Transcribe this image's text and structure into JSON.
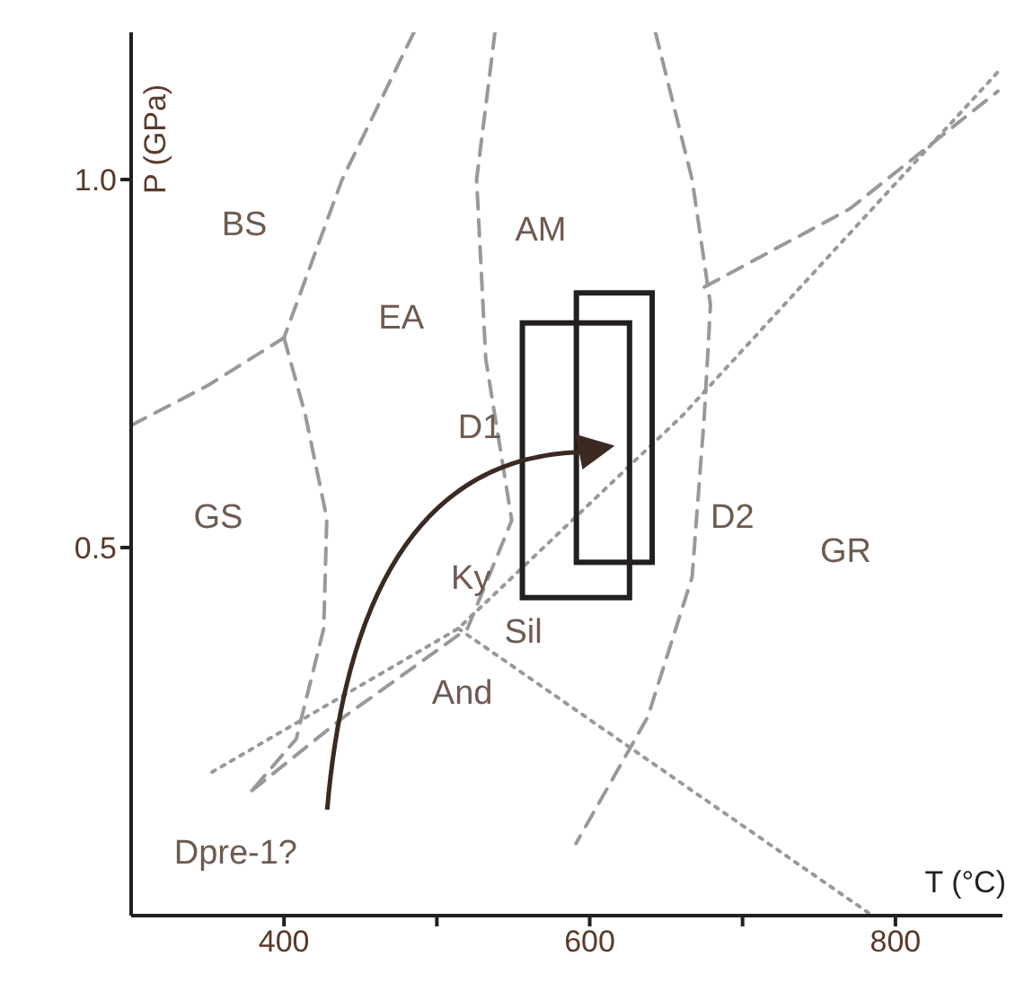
{
  "chart_data": {
    "type": "line",
    "xlabel": "T (°C)",
    "ylabel": "P (GPa)",
    "xlim": [
      300,
      870
    ],
    "ylim": [
      0,
      1.2
    ],
    "xticks": [
      400,
      {
        "value": 500,
        "label": null
      },
      600,
      {
        "value": 700,
        "label": null
      },
      800
    ],
    "yticks": [
      0.5,
      {
        "value": 1.0,
        "label": "1.0"
      }
    ],
    "marker": "none",
    "series": [
      {
        "color": "#999999",
        "line_style": "dashed",
        "x": [
          300,
          350,
          400
        ],
        "values": [
          0.666,
          0.72,
          0.785
        ]
      },
      {
        "color": "#999999",
        "line_style": "dashed",
        "x": [
          485,
          438,
          400
        ],
        "values": [
          1.2,
          1.0,
          0.785
        ]
      },
      {
        "color": "#999999",
        "line_style": "dashed",
        "x": [
          400,
          414,
          428,
          426,
          408,
          379
        ],
        "values": [
          0.785,
          0.68,
          0.54,
          0.39,
          0.24,
          0.17
        ]
      },
      {
        "color": "#999999",
        "line_style": "dashed",
        "x": [
          538,
          526,
          532,
          549,
          520,
          438,
          379
        ],
        "values": [
          1.2,
          1.0,
          0.756,
          0.537,
          0.39,
          0.268,
          0.17
        ]
      },
      {
        "color": "#999999",
        "line_style": "dashed",
        "x": [
          643,
          667,
          679,
          675,
          667,
          638,
          591
        ],
        "values": [
          1.2,
          1.0,
          0.83,
          0.68,
          0.46,
          0.27,
          0.098
        ]
      },
      {
        "color": "#999999",
        "line_style": "dashed",
        "x": [
          675,
          770,
          867
        ],
        "values": [
          0.854,
          0.96,
          1.12
        ]
      },
      {
        "color": "#999999",
        "line_style": "dotted",
        "x": [
          353,
          514,
          661,
          867
        ],
        "values": [
          0.195,
          0.39,
          0.68,
          1.146
        ]
      },
      {
        "color": "#999999",
        "line_style": "dotted",
        "x": [
          514,
          785
        ],
        "values": [
          0.39,
          0.0
        ]
      }
    ],
    "annotations": [
      "BS",
      "EA",
      "AM",
      "GS",
      "GR",
      "D1",
      "D2",
      "Ky",
      "Sil",
      "And",
      "Dpre-1?"
    ]
  }
}
